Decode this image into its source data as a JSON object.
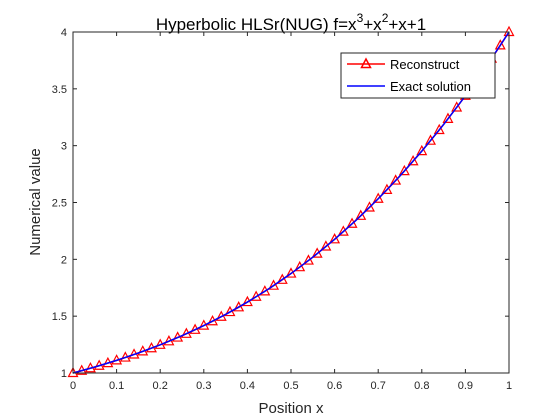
{
  "chart_data": {
    "type": "line",
    "title": {
      "prefix": "Hyperbolic HLSr(NUG) f=x",
      "sup1": "3",
      "mid": "+x",
      "sup2": "2",
      "suffix": "+x+1"
    },
    "xlabel": "Position x",
    "ylabel": "Numerical value",
    "xlim": [
      0,
      1
    ],
    "ylim": [
      1,
      4
    ],
    "xticks": [
      0,
      0.1,
      0.2,
      0.3,
      0.4,
      0.5,
      0.6,
      0.7,
      0.8,
      0.9,
      1
    ],
    "xtick_labels": [
      "0",
      "0.1",
      "0.2",
      "0.3",
      "0.4",
      "0.5",
      "0.6",
      "0.7",
      "0.8",
      "0.9",
      "1"
    ],
    "yticks": [
      1,
      1.5,
      2,
      2.5,
      3,
      3.5,
      4
    ],
    "ytick_labels": [
      "1",
      "1.5",
      "2",
      "2.5",
      "3",
      "3.5",
      "4"
    ],
    "grid": false,
    "legend_position": "top-right",
    "series": [
      {
        "name": "Reconstruct",
        "color": "#ff0000",
        "marker": "triangle",
        "x": [
          0,
          0.02,
          0.04,
          0.06,
          0.08,
          0.1,
          0.12,
          0.14,
          0.16,
          0.18,
          0.2,
          0.22,
          0.24,
          0.26,
          0.28,
          0.3,
          0.32,
          0.34,
          0.36,
          0.38,
          0.4,
          0.42,
          0.44,
          0.46,
          0.48,
          0.5,
          0.52,
          0.54,
          0.56,
          0.58,
          0.6,
          0.62,
          0.64,
          0.66,
          0.68,
          0.7,
          0.72,
          0.74,
          0.76,
          0.78,
          0.8,
          0.82,
          0.84,
          0.86,
          0.88,
          0.9,
          0.92,
          0.94,
          0.96,
          0.98,
          1
        ],
        "y": [
          1,
          1.02,
          1.042,
          1.064,
          1.087,
          1.111,
          1.136,
          1.163,
          1.19,
          1.218,
          1.248,
          1.279,
          1.312,
          1.345,
          1.38,
          1.417,
          1.455,
          1.495,
          1.536,
          1.578,
          1.624,
          1.671,
          1.718,
          1.768,
          1.82,
          1.875,
          1.931,
          1.989,
          2.05,
          2.113,
          2.176,
          2.244,
          2.313,
          2.383,
          2.456,
          2.533,
          2.611,
          2.693,
          2.776,
          2.863,
          2.952,
          3.044,
          3.138,
          3.236,
          3.336,
          3.439,
          3.545,
          3.654,
          3.765,
          3.882,
          4
        ]
      },
      {
        "name": "Exact solution",
        "color": "#0000ff",
        "marker": "none",
        "x": [
          0,
          0.05,
          0.1,
          0.15,
          0.2,
          0.25,
          0.3,
          0.35,
          0.4,
          0.45,
          0.5,
          0.55,
          0.6,
          0.65,
          0.7,
          0.75,
          0.8,
          0.85,
          0.9,
          0.95,
          1
        ],
        "y": [
          1,
          1.053,
          1.111,
          1.176,
          1.248,
          1.328,
          1.417,
          1.515,
          1.624,
          1.743,
          1.875,
          2.019,
          2.176,
          2.347,
          2.533,
          2.734,
          2.952,
          3.186,
          3.439,
          3.709,
          4
        ]
      }
    ]
  }
}
